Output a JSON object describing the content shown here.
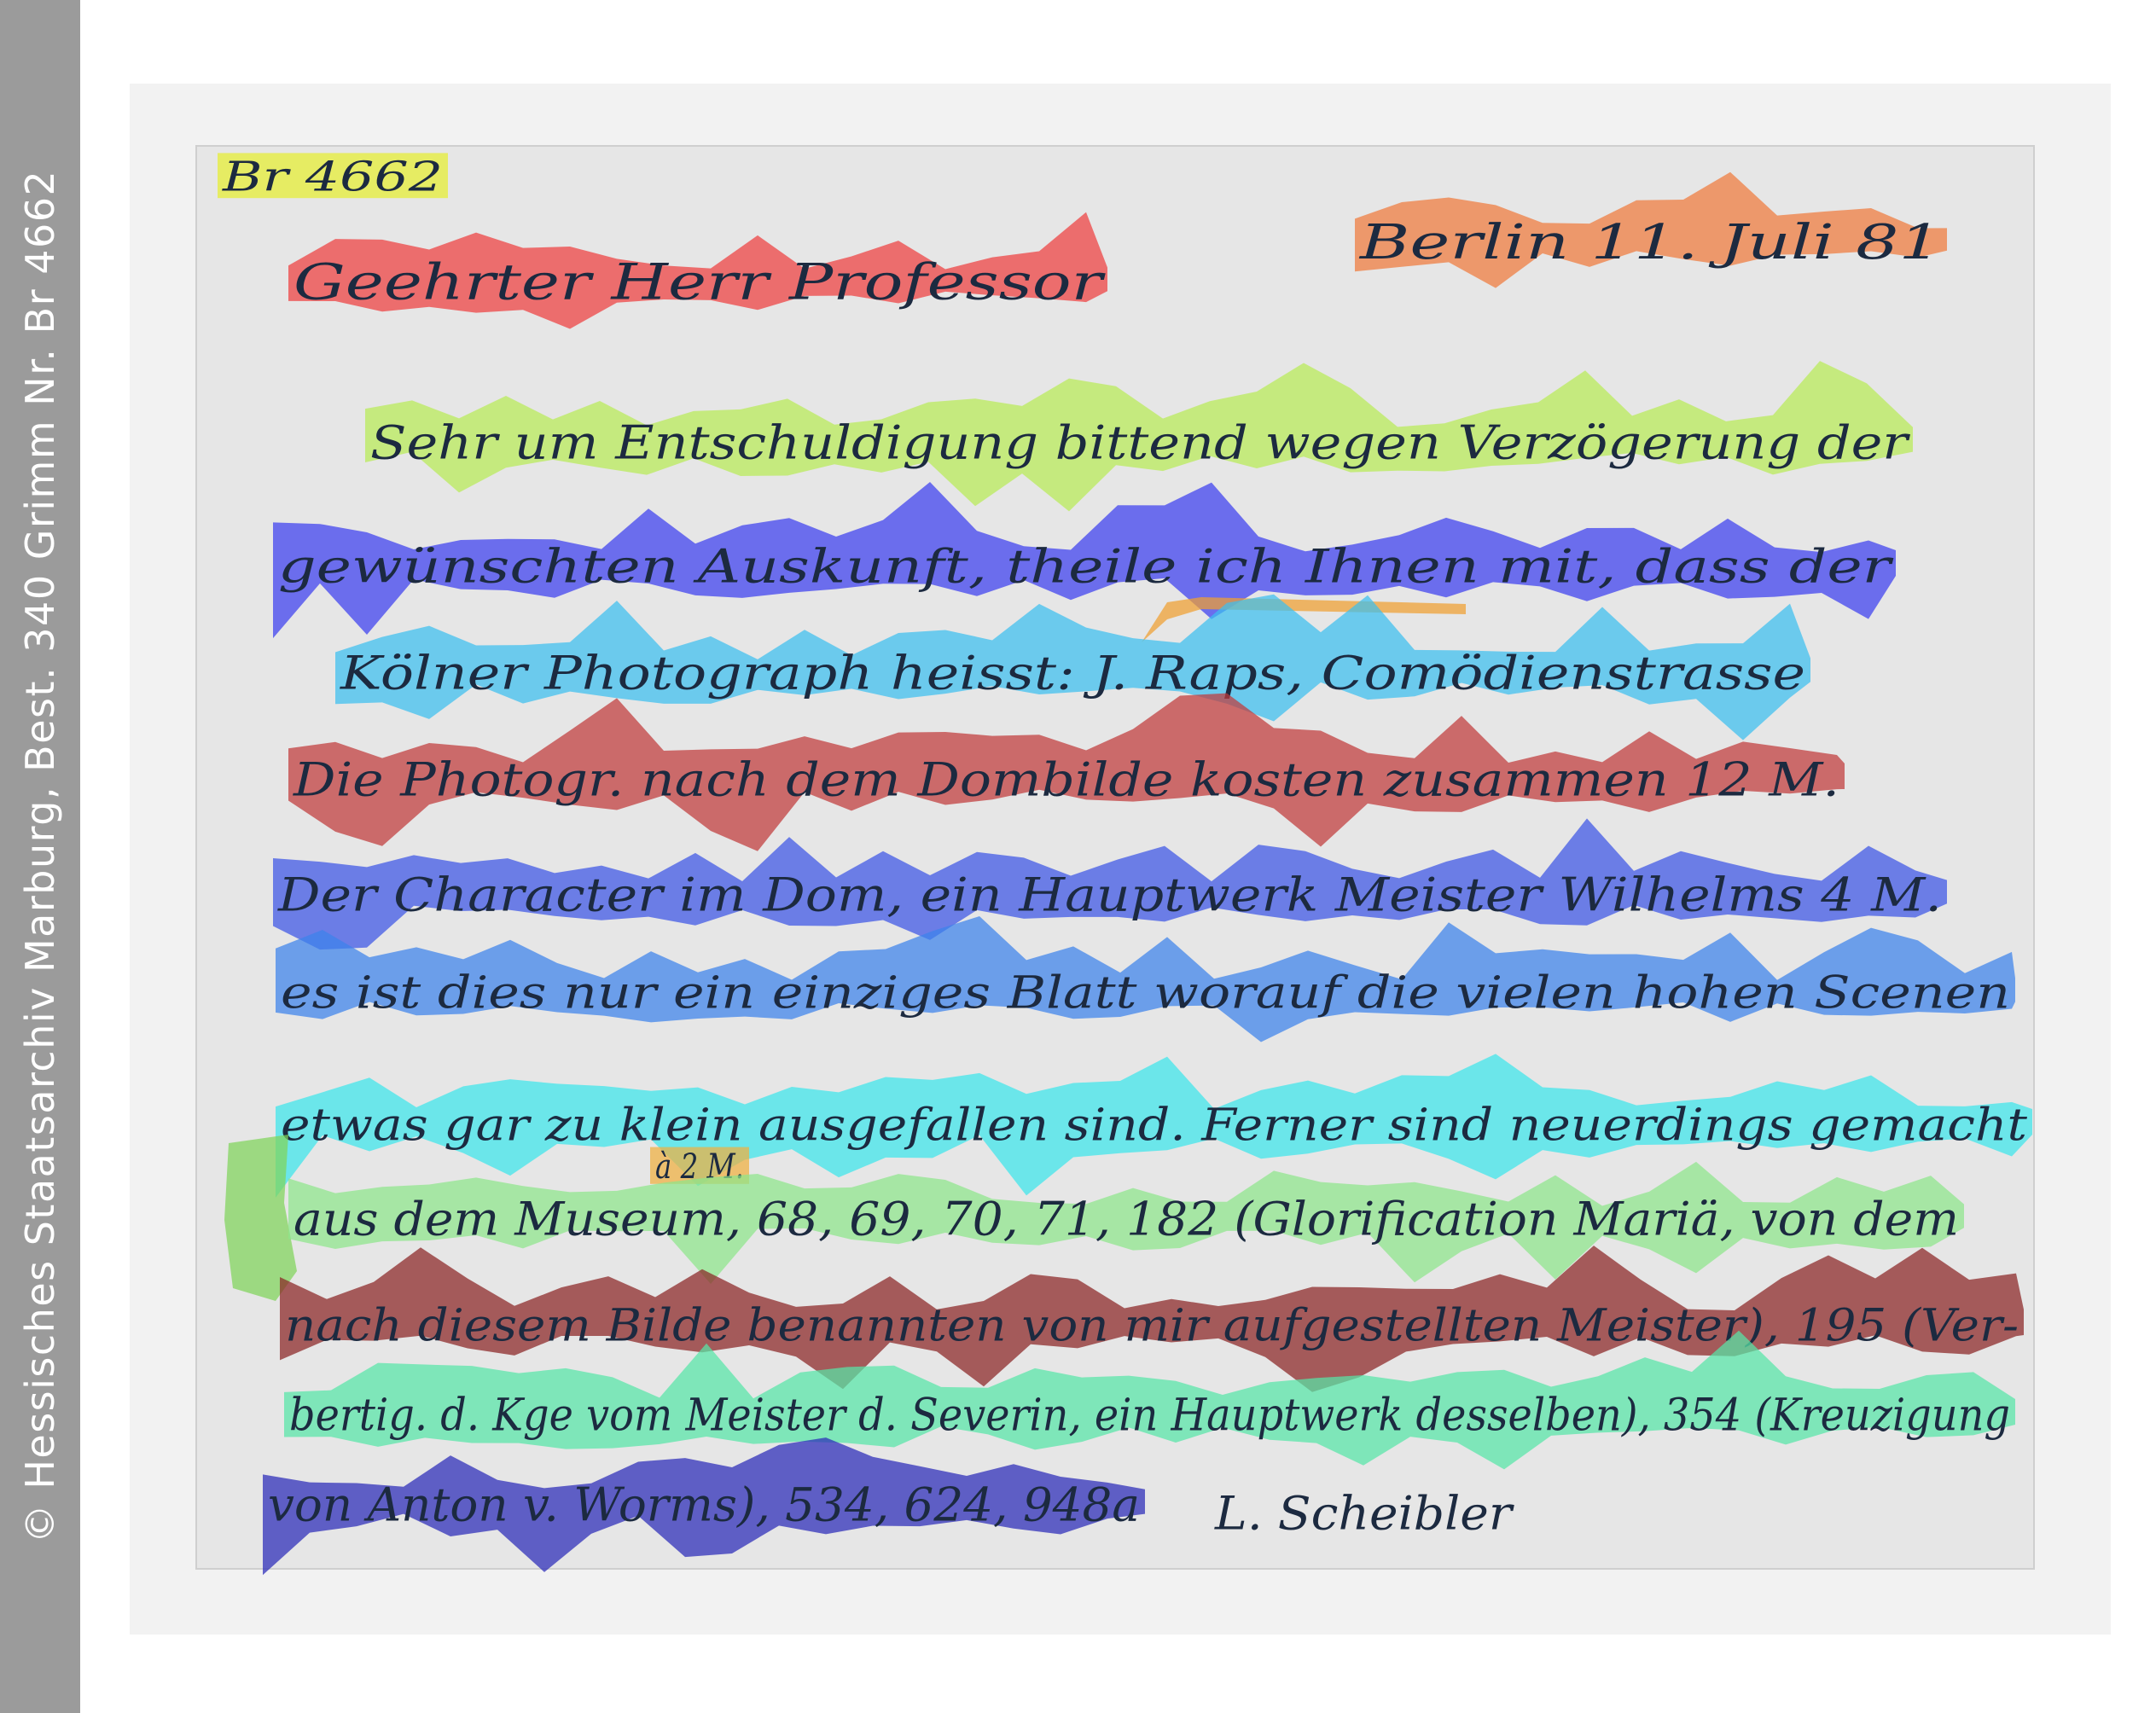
{
  "sidebar": {
    "credit": "© Hessisches Staatsarchiv Marburg, Best. 340 Grimm Nr. Br 4662"
  },
  "document": {
    "regions": [
      {
        "id": "shelfmark",
        "color": "#e6ee30",
        "text": "Br 4662"
      },
      {
        "id": "salutation",
        "color": "#ee3f3f",
        "text": "Geehrter Herr Professor"
      },
      {
        "id": "place-date",
        "color": "#f07a3c",
        "text": "Berlin 11. Juli 81"
      },
      {
        "id": "line-1",
        "color": "#b8ec56",
        "text": "Sehr um Entschuldigung bittend wegen Verzögerung der"
      },
      {
        "id": "line-2",
        "color": "#3c3ff0",
        "text": "gewünschten Auskunft, theile ich Ihnen mit, dass der"
      },
      {
        "id": "insertion-mark",
        "color": "#f0a030",
        "text": ""
      },
      {
        "id": "line-3",
        "color": "#3cbff0",
        "text": "Kölner Photograph heisst: J. Raps, Comödienstrasse"
      },
      {
        "id": "line-4",
        "color": "#c03a3a",
        "text": "Die Photogr. nach dem Dombilde kosten zusammen 12 M."
      },
      {
        "id": "line-5",
        "color": "#3c55e6",
        "text": "Der Character im Dom, ein Hauptwerk Meister Wilhelms 4 M."
      },
      {
        "id": "line-6",
        "color": "#3c82ec",
        "text": "es ist dies nur ein einziges Blatt worauf die vielen hohen Scenen"
      },
      {
        "id": "line-7",
        "color": "#3ce6ec",
        "text": "etwas gar zu klein ausgefallen sind. Ferner sind neuerdings gemacht"
      },
      {
        "id": "margin-note",
        "color": "#7fd45a",
        "text": ""
      },
      {
        "id": "price-note",
        "color": "#f0b040",
        "text": "à 2 M."
      },
      {
        "id": "line-8",
        "color": "#8ee68a",
        "text": "aus dem Museum, 68, 69, 70, 71, 182 (Glorification Mariä, von dem"
      },
      {
        "id": "line-9",
        "color": "#8a2424",
        "text": "nach diesem Bilde benannten von mir aufgestellten Meister), 195 (Ver-"
      },
      {
        "id": "line-10",
        "color": "#56e6a8",
        "text": "bertig. d. Kge vom Meister d. Severin, ein Hauptwerk desselben), 354 (Kreuzigung"
      },
      {
        "id": "line-11",
        "color": "#2a2ab8",
        "text": "von Anton v. Worms), 534, 624, 948a"
      },
      {
        "id": "signature",
        "color": "#2a2ab8",
        "text": "L. Scheibler"
      }
    ]
  }
}
